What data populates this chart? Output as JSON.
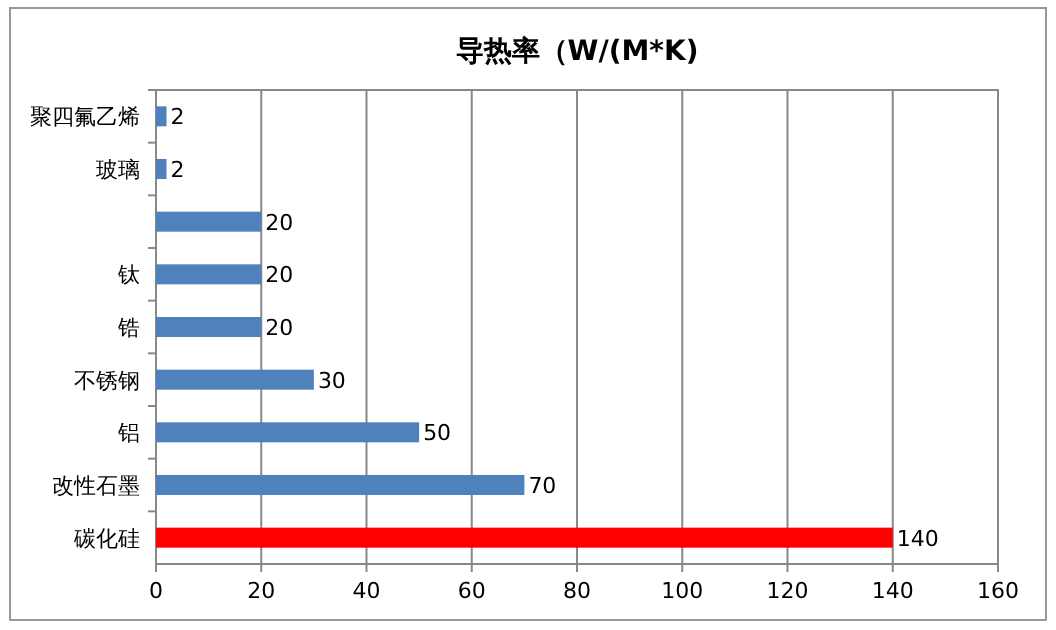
{
  "chart_data": {
    "type": "bar",
    "orientation": "horizontal",
    "title": "导热率（W/(M*K)",
    "categories": [
      "聚四氟乙烯",
      "玻璃",
      null,
      "钛",
      "锆",
      "不锈钢",
      "铝",
      "改性石墨",
      "碳化硅"
    ],
    "values": [
      2,
      2,
      20,
      20,
      20,
      30,
      50,
      70,
      140
    ],
    "colors": [
      "#4f81bd",
      "#4f81bd",
      "#4f81bd",
      "#4f81bd",
      "#4f81bd",
      "#4f81bd",
      "#4f81bd",
      "#4f81bd",
      "#ff0000"
    ],
    "xlim": [
      0,
      160
    ],
    "xticks": [
      0,
      20,
      40,
      60,
      80,
      100,
      120,
      140,
      160
    ],
    "grid": "x",
    "data_labels": true
  }
}
